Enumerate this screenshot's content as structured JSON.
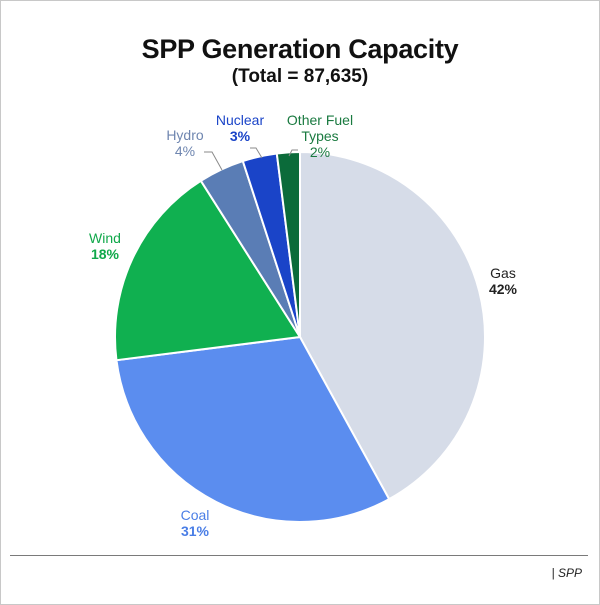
{
  "chart_data": {
    "type": "pie",
    "title": "SPP Generation Capacity",
    "subtitle": "(Total = 87,635)",
    "slices": [
      {
        "name": "Gas",
        "value": 42,
        "percent_label": "42%",
        "color": "#d6dce8",
        "label_color": "#222222",
        "label_lines": [
          "Gas"
        ]
      },
      {
        "name": "Coal",
        "value": 31,
        "percent_label": "31%",
        "color": "#5b8def",
        "label_color": "#4a7ee6",
        "label_lines": [
          "Coal"
        ]
      },
      {
        "name": "Wind",
        "value": 18,
        "percent_label": "18%",
        "color": "#10b050",
        "label_color": "#10a84a",
        "label_lines": [
          "Wind"
        ]
      },
      {
        "name": "Hydro",
        "value": 4,
        "percent_label": "4%",
        "color": "#5a7db5",
        "label_color": "#6f86b0",
        "label_lines": [
          "Hydro"
        ]
      },
      {
        "name": "Nuclear",
        "value": 3,
        "percent_label": "3%",
        "color": "#1a44c8",
        "label_color": "#1a44c8",
        "label_lines": [
          "Nuclear"
        ]
      },
      {
        "name": "Other Fuel Types",
        "value": 2,
        "percent_label": "2%",
        "color": "#0b6b3a",
        "label_color": "#1a7a40",
        "label_lines": [
          "Other Fuel",
          "Types"
        ]
      }
    ]
  },
  "source": "| SPP"
}
